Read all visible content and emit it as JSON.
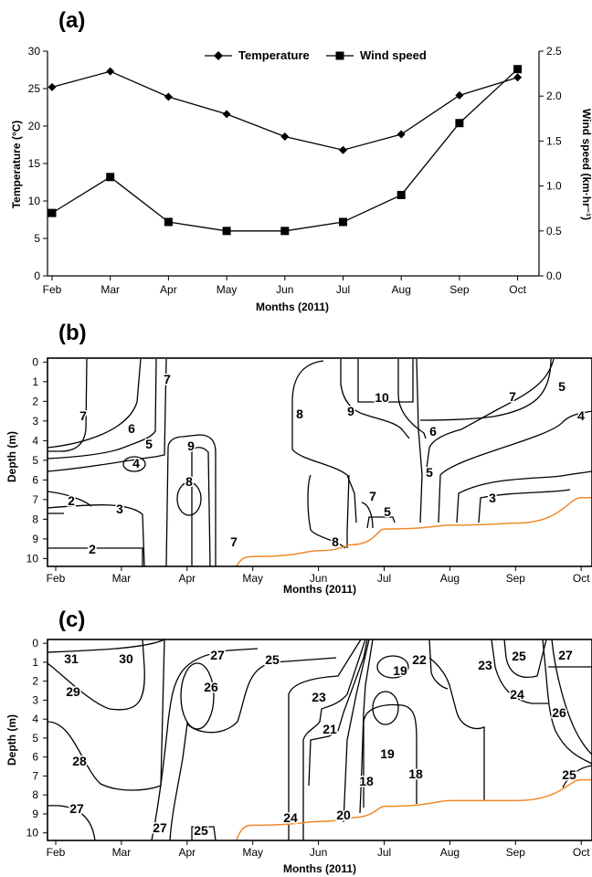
{
  "panels": {
    "a": {
      "label": "(a)"
    },
    "b": {
      "label": "(b)"
    },
    "c": {
      "label": "(c)"
    }
  },
  "colors": {
    "line": "#000000",
    "bottom_boundary": "#f08a2c",
    "background": "#ffffff"
  },
  "chart_data": [
    {
      "type": "line",
      "panel": "(a)",
      "categories": [
        "Feb",
        "Mar",
        "Apr",
        "May",
        "Jun",
        "Jul",
        "Aug",
        "Sep",
        "Oct"
      ],
      "xlabel": "Months (2011)",
      "ylabel": "Temperature (°C)",
      "ylabel_right": "Wind speed (km·hr⁻¹)",
      "ylim": [
        0,
        30
      ],
      "yticks": [
        "0",
        "5",
        "10",
        "15",
        "20",
        "25",
        "30"
      ],
      "ylim_right": [
        0,
        2.5
      ],
      "yticks_right": [
        "0.0",
        "0.5",
        "1.0",
        "1.5",
        "2.0",
        "2.5"
      ],
      "legend_position": "top-center",
      "series": [
        {
          "name": "Temperature",
          "axis": "left",
          "marker": "diamond",
          "values": [
            25.2,
            27.3,
            23.9,
            21.6,
            18.6,
            16.8,
            18.9,
            24.1,
            26.5
          ]
        },
        {
          "name": "Wind speed",
          "axis": "right",
          "marker": "square",
          "values": [
            0.7,
            1.1,
            0.6,
            0.5,
            0.5,
            0.6,
            0.9,
            1.7,
            2.3
          ]
        }
      ]
    },
    {
      "type": "contour",
      "panel": "(b)",
      "xlabel": "Months (2011)",
      "ylabel": "Depth (m)",
      "x_ticks": [
        "Feb",
        "Mar",
        "Apr",
        "May",
        "Jun",
        "Jul",
        "Aug",
        "Sep",
        "Oct"
      ],
      "y_ticks": [
        "0",
        "1",
        "2",
        "3",
        "4",
        "5",
        "6",
        "7",
        "8",
        "9",
        "10"
      ],
      "ylim": [
        10.4,
        -0.2
      ],
      "y_inverted": true,
      "contour_labels": [
        "7",
        "7",
        "6",
        "5",
        "4",
        "9",
        "8",
        "2",
        "3",
        "2",
        "7",
        "8",
        "9",
        "10",
        "6",
        "5",
        "7",
        "5",
        "8",
        "7",
        "5",
        "4",
        "3"
      ],
      "bottom_depth": {
        "x": [
          "May",
          "Jun",
          "Jun 15",
          "Jul",
          "Aug",
          "Sep",
          "Oct"
        ],
        "depth": [
          9.9,
          9.6,
          9.3,
          8.5,
          8.3,
          8.2,
          6.9
        ]
      }
    },
    {
      "type": "contour",
      "panel": "(c)",
      "xlabel": "Months (2011)",
      "ylabel": "Depth (m)",
      "x_ticks": [
        "Feb",
        "Mar",
        "Apr",
        "May",
        "Jun",
        "Jul",
        "Aug",
        "Sep",
        "Oct"
      ],
      "y_ticks": [
        "0",
        "1",
        "2",
        "3",
        "4",
        "5",
        "6",
        "7",
        "8",
        "9",
        "10"
      ],
      "ylim": [
        10.4,
        -0.2
      ],
      "y_inverted": true,
      "contour_labels": [
        "31",
        "30",
        "29",
        "28",
        "27",
        "27",
        "26",
        "27",
        "25",
        "25",
        "23",
        "21",
        "24",
        "20",
        "19",
        "19",
        "22",
        "18",
        "18",
        "23",
        "25",
        "24",
        "27",
        "26",
        "25"
      ],
      "bottom_depth": {
        "x": [
          "May",
          "Jun",
          "Jun 15",
          "Jul",
          "Aug",
          "Sep",
          "Oct"
        ],
        "depth": [
          9.6,
          9.4,
          9.2,
          8.6,
          8.3,
          8.3,
          7.2
        ]
      }
    }
  ]
}
